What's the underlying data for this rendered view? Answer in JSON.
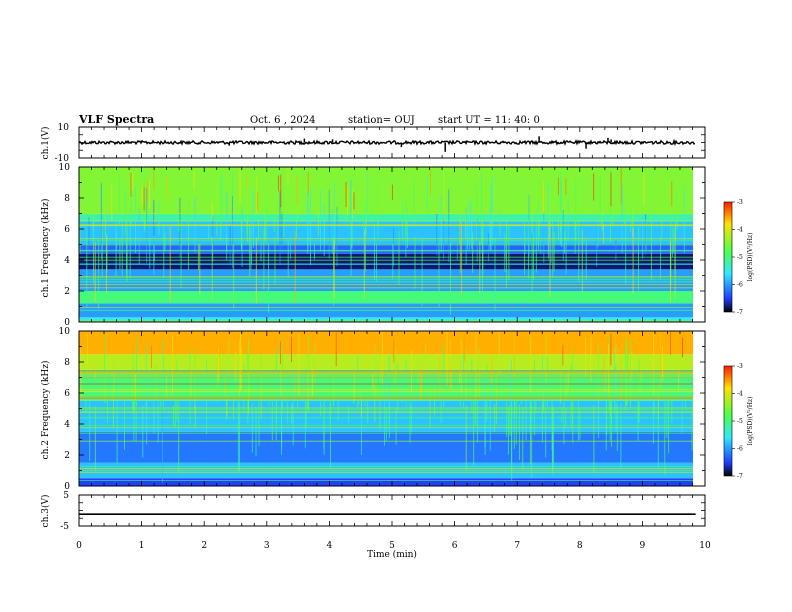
{
  "header": {
    "title": "VLF Spectra",
    "date": "Oct. 6 , 2024",
    "station": "station= OUJ",
    "start": "start UT = 11: 40: 0"
  },
  "colors": {
    "low": "#000000",
    "mid_low": "#1f3cff",
    "mid": "#2ee8ff",
    "mid_high": "#4cff4c",
    "high": "#ffe000",
    "max": "#ff1a00"
  },
  "chart_data": [
    {
      "type": "line",
      "ylabel": "ch.1(V)",
      "x_range": [
        0,
        10
      ],
      "ylim": [
        -10,
        10
      ],
      "yticks": [
        {
          "value": 10,
          "label": "10"
        },
        {
          "value": -10,
          "label": "-10"
        }
      ],
      "series": [
        {
          "x": [
            0,
            9.85
          ],
          "y": [
            0,
            0
          ]
        }
      ],
      "spikes": [
        {
          "x": 2.4,
          "y": -2
        },
        {
          "x": 3.6,
          "y": 2.5
        },
        {
          "x": 4.05,
          "y": 2
        },
        {
          "x": 5.15,
          "y": -3
        },
        {
          "x": 5.85,
          "y": -6
        },
        {
          "x": 7.35,
          "y": 4
        },
        {
          "x": 8.1,
          "y": -4
        },
        {
          "x": 8.45,
          "y": 3
        },
        {
          "x": 8.5,
          "y": 2
        }
      ]
    },
    {
      "type": "heatmap",
      "ylabel": "ch.1 Frequency (kHz)",
      "x_range": [
        0,
        9.85
      ],
      "ylim": [
        0,
        10
      ],
      "yticks": [
        "0",
        "2",
        "4",
        "6",
        "8",
        "10"
      ],
      "colorbar": {
        "label": "log(PSD)(V²/Hz)",
        "range": [
          -7,
          -3
        ],
        "ticks": [
          "-3",
          "-4",
          "-5",
          "-6",
          "-7"
        ]
      },
      "bands": [
        {
          "f_min": 0,
          "f_max": 0.3,
          "log_psd": -5.5
        },
        {
          "f_min": 0.3,
          "f_max": 1.2,
          "log_psd": -6.0
        },
        {
          "f_min": 1.2,
          "f_max": 2.0,
          "log_psd": -5.0
        },
        {
          "f_min": 2.0,
          "f_max": 3.4,
          "log_psd": -6.0
        },
        {
          "f_min": 3.4,
          "f_max": 4.4,
          "log_psd": -6.8
        },
        {
          "f_min": 4.4,
          "f_max": 5.0,
          "log_psd": -6.3
        },
        {
          "f_min": 5.0,
          "f_max": 6.5,
          "log_psd": -5.8
        },
        {
          "f_min": 6.5,
          "f_max": 7.0,
          "log_psd": -5.2
        },
        {
          "f_min": 7.0,
          "f_max": 10,
          "log_psd": -4.5
        }
      ]
    },
    {
      "type": "heatmap",
      "ylabel": "ch.2 Frequency (kHz)",
      "x_range": [
        0,
        9.85
      ],
      "ylim": [
        0,
        10
      ],
      "yticks": [
        "0",
        "2",
        "4",
        "6",
        "8",
        "10"
      ],
      "colorbar": {
        "label": "log(PSD)(V²/Hz)",
        "range": [
          -7,
          -3
        ],
        "ticks": [
          "-3",
          "-4",
          "-5",
          "-6",
          "-7"
        ]
      },
      "bands": [
        {
          "f_min": 0,
          "f_max": 0.5,
          "log_psd": -6.5
        },
        {
          "f_min": 0.5,
          "f_max": 1.5,
          "log_psd": -5.8
        },
        {
          "f_min": 1.5,
          "f_max": 3.5,
          "log_psd": -6.2
        },
        {
          "f_min": 3.5,
          "f_max": 5.5,
          "log_psd": -5.8
        },
        {
          "f_min": 5.5,
          "f_max": 7.5,
          "log_psd": -5.0
        },
        {
          "f_min": 7.5,
          "f_max": 8.5,
          "log_psd": -4.2
        },
        {
          "f_min": 8.5,
          "f_max": 10,
          "log_psd": -3.6
        }
      ]
    },
    {
      "type": "line",
      "ylabel": "ch.3(V)",
      "x_range": [
        0,
        10
      ],
      "ylim": [
        -5,
        5
      ],
      "yticks": [
        {
          "value": 5,
          "label": "5"
        },
        {
          "value": -5,
          "label": "-5"
        }
      ],
      "series": [
        {
          "x": [
            0,
            9.85
          ],
          "y": [
            -1.2,
            -1.2
          ]
        }
      ]
    }
  ],
  "x_axis": {
    "label": "Time (min)",
    "ticks": [
      "0",
      "1",
      "2",
      "3",
      "4",
      "5",
      "6",
      "7",
      "8",
      "9",
      "10"
    ]
  }
}
